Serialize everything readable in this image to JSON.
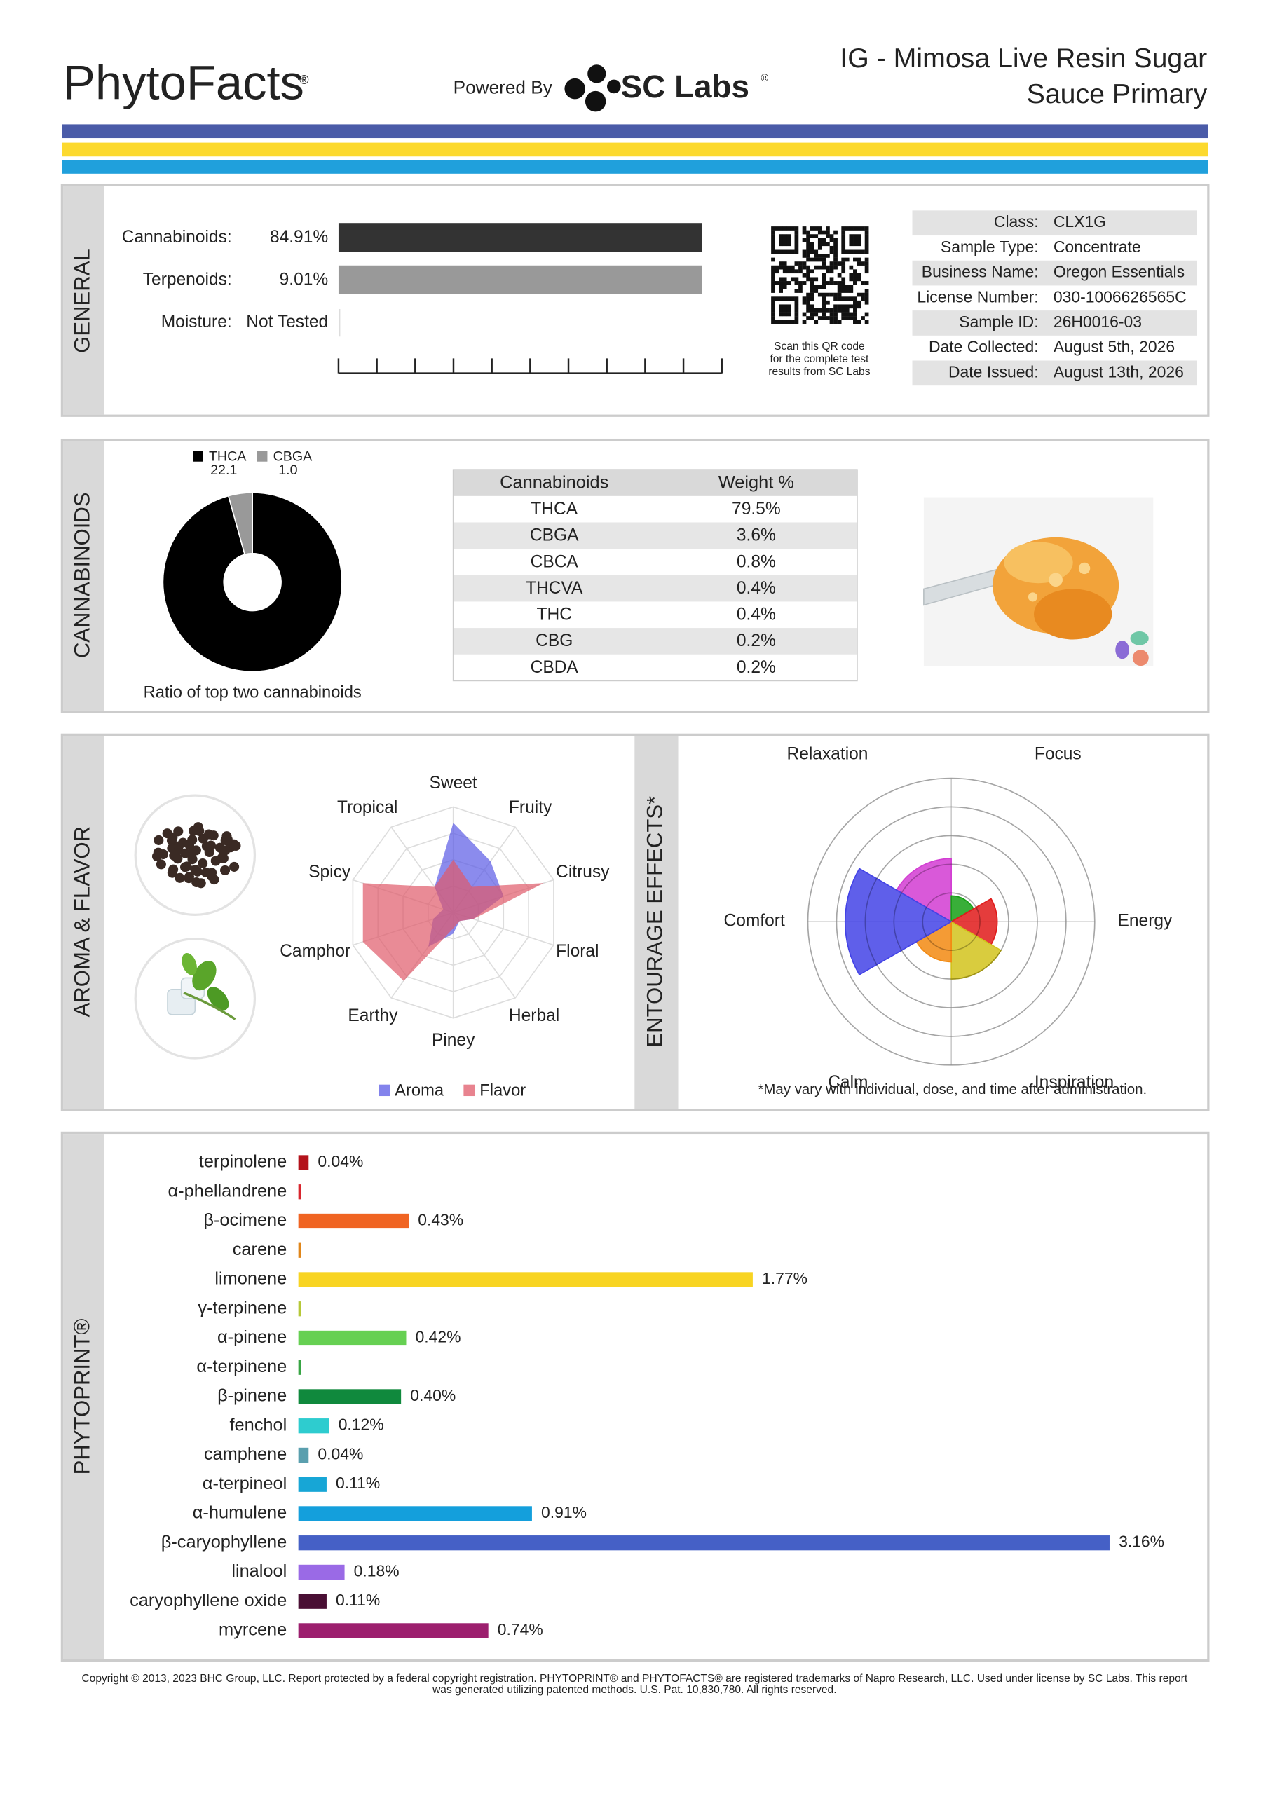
{
  "header": {
    "brand": "PhytoFacts",
    "brand_mark": "®",
    "powered_by": "Powered By",
    "lab": "SC Labs",
    "lab_mark": "®",
    "title": [
      "IG - Mimosa Live Resin Sugar",
      "Sauce Primary"
    ]
  },
  "general": {
    "section": "GENERAL",
    "rows": [
      [
        "Cannabinoids:",
        "84.91%"
      ],
      [
        "Terpenoids:",
        "9.01%"
      ],
      [
        "Moisture:",
        "Not Tested"
      ]
    ],
    "qr_note": [
      "Scan this QR code",
      "for the complete test",
      "results from SC Labs"
    ],
    "info": [
      [
        "Class:",
        "CLX1G"
      ],
      [
        "Sample Type:",
        "Concentrate"
      ],
      [
        "Business Name:",
        "Oregon Essentials"
      ],
      [
        "License Number:",
        "030-1006626565C"
      ],
      [
        "Sample ID:",
        "26H0016-03"
      ],
      [
        "Date Collected:",
        "August 5th, 2026"
      ],
      [
        "Date Issued:",
        "August 13th, 2026"
      ]
    ]
  },
  "cannabinoids": {
    "section": "CANNABINOIDS",
    "pie": {
      "type": "donut",
      "categories": [
        "THCA",
        "CBGA"
      ],
      "values": [
        22.1,
        1.0
      ],
      "value_labels": [
        "22.1",
        "1.0"
      ],
      "colors": [
        "#000000",
        "#999999"
      ],
      "caption": "Ratio of top two cannabinoids"
    },
    "table": {
      "header": [
        "Cannabinoids",
        "Weight %"
      ],
      "rows": [
        [
          "THCA",
          "79.5%"
        ],
        [
          "CBGA",
          "3.6%"
        ],
        [
          "CBCA",
          "0.8%"
        ],
        [
          "THCVA",
          "0.4%"
        ],
        [
          "THC",
          "0.4%"
        ],
        [
          "CBG",
          "0.2%"
        ],
        [
          "CBDA",
          "0.2%"
        ]
      ]
    }
  },
  "aroma_flavor": {
    "section": "AROMA & FLAVOR",
    "type": "radar",
    "categories": [
      "Sweet",
      "Fruity",
      "Citrusy",
      "Floral",
      "Herbal",
      "Piney",
      "Earthy",
      "Camphor",
      "Spicy",
      "Tropical"
    ],
    "rlim": [
      0,
      10
    ],
    "series": [
      {
        "name": "Aroma",
        "color": "#5a5ae6",
        "values": [
          8.5,
          6,
          5,
          2,
          1,
          2,
          4,
          2,
          1,
          3
        ]
      },
      {
        "name": "Flavor",
        "color": "#e05a6a",
        "values": [
          5,
          3,
          9,
          2,
          1,
          1.5,
          8,
          9,
          9,
          3
        ]
      }
    ]
  },
  "entourage": {
    "section": "ENTOURAGE EFFECTS*",
    "type": "polar_area",
    "categories": [
      "Relaxation",
      "Focus",
      "Energy",
      "Inspiration",
      "Calm",
      "Comfort"
    ],
    "colors": [
      "#d23cd2",
      "#16a016",
      "#e01a1a",
      "#d2c31c",
      "#f28a12",
      "#4343e6"
    ],
    "values": [
      2.2,
      0.9,
      1.6,
      2,
      1.4,
      3.7
    ],
    "rlim": [
      0,
      5
    ],
    "note": "*May vary with individual, dose, and time after administration."
  },
  "phytoprint": {
    "section": "PHYTOPRINT®",
    "type": "bar",
    "categories": [
      "terpinolene",
      "α-phellandrene",
      "β-ocimene",
      "carene",
      "limonene",
      "γ-terpinene",
      "α-pinene",
      "α-terpinene",
      "β-pinene",
      "fenchol",
      "camphene",
      "α-terpineol",
      "α-humulene",
      "β-caryophyllene",
      "linalool",
      "caryophyllene oxide",
      "myrcene"
    ],
    "values": [
      0.04,
      0.01,
      0.43,
      0.01,
      1.77,
      0.01,
      0.42,
      0.01,
      0.4,
      0.12,
      0.04,
      0.11,
      0.91,
      3.16,
      0.18,
      0.11,
      0.74
    ],
    "value_labels": [
      "0.04%",
      null,
      "0.43%",
      null,
      "1.77%",
      null,
      "0.42%",
      null,
      "0.40%",
      "0.12%",
      "0.04%",
      "0.11%",
      "0.91%",
      "3.16%",
      "0.18%",
      "0.11%",
      "0.74%"
    ],
    "colors": [
      "#b3121a",
      "#d8262e",
      "#f06422",
      "#e0861a",
      "#f8d422",
      "#b6c838",
      "#66d052",
      "#38a544",
      "#10893d",
      "#2ecccf",
      "#5a9fae",
      "#17a6d6",
      "#149fdc",
      "#4560c6",
      "#9a6ae6",
      "#4a0f34",
      "#9c1f6e"
    ],
    "xlim": [
      0,
      3.5
    ]
  },
  "footer": [
    "Copyright © 2013, 2023 BHC Group, LLC. Report protected by a federal copyright registration. PHYTOPRINT® and PHYTOFACTS® are registered trademarks of Napro Research, LLC. Used under license by SC Labs. This report",
    "was generated utilizing patented methods. U.S. Pat. 10,830,780. All rights reserved."
  ]
}
